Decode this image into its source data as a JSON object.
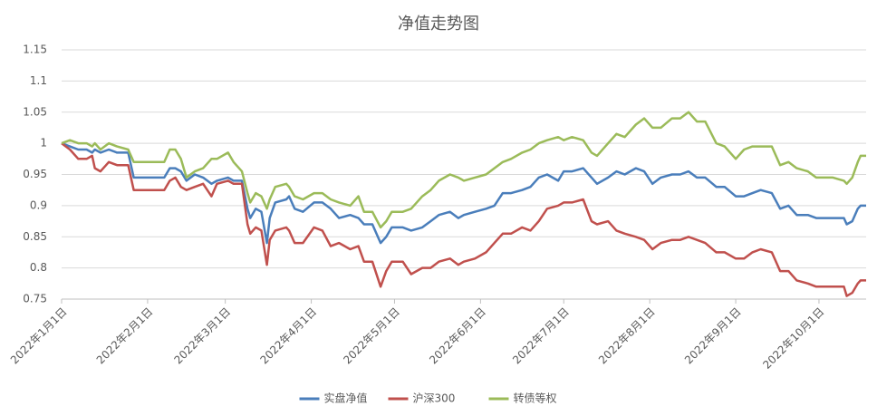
{
  "chart_data": {
    "type": "line",
    "title": "净值走势图",
    "x": [
      "2022-01-01",
      "2022-01-04",
      "2022-01-07",
      "2022-01-10",
      "2022-01-12",
      "2022-01-13",
      "2022-01-15",
      "2022-01-18",
      "2022-01-21",
      "2022-01-25",
      "2022-01-27",
      "2022-02-07",
      "2022-02-09",
      "2022-02-11",
      "2022-02-13",
      "2022-02-15",
      "2022-02-18",
      "2022-02-21",
      "2022-02-24",
      "2022-02-26",
      "2022-03-02",
      "2022-03-04",
      "2022-03-07",
      "2022-03-09",
      "2022-03-10",
      "2022-03-12",
      "2022-03-14",
      "2022-03-16",
      "2022-03-17",
      "2022-03-19",
      "2022-03-23",
      "2022-03-24",
      "2022-03-26",
      "2022-03-29",
      "2022-04-02",
      "2022-04-05",
      "2022-04-08",
      "2022-04-11",
      "2022-04-15",
      "2022-04-18",
      "2022-04-20",
      "2022-04-23",
      "2022-04-26",
      "2022-04-28",
      "2022-04-30",
      "2022-05-04",
      "2022-05-07",
      "2022-05-11",
      "2022-05-14",
      "2022-05-17",
      "2022-05-21",
      "2022-05-24",
      "2022-05-26",
      "2022-05-30",
      "2022-06-03",
      "2022-06-06",
      "2022-06-09",
      "2022-06-12",
      "2022-06-16",
      "2022-06-19",
      "2022-06-22",
      "2022-06-25",
      "2022-06-29",
      "2022-07-01",
      "2022-07-04",
      "2022-07-08",
      "2022-07-11",
      "2022-07-13",
      "2022-07-17",
      "2022-07-20",
      "2022-07-23",
      "2022-07-27",
      "2022-07-30",
      "2022-08-02",
      "2022-08-05",
      "2022-08-09",
      "2022-08-12",
      "2022-08-15",
      "2022-08-18",
      "2022-08-21",
      "2022-08-25",
      "2022-08-28",
      "2022-09-01",
      "2022-09-04",
      "2022-09-07",
      "2022-09-10",
      "2022-09-14",
      "2022-09-17",
      "2022-09-20",
      "2022-09-23",
      "2022-09-27",
      "2022-09-30",
      "2022-10-03",
      "2022-10-06",
      "2022-10-10",
      "2022-10-11",
      "2022-10-13",
      "2022-10-15",
      "2022-10-16",
      "2022-10-18"
    ],
    "series": [
      {
        "name": "实盘净值",
        "color": "#4a7ebb",
        "values": [
          1,
          0.995,
          0.99,
          0.99,
          0.985,
          0.99,
          0.985,
          0.99,
          0.985,
          0.985,
          0.945,
          0.945,
          0.96,
          0.96,
          0.955,
          0.94,
          0.95,
          0.945,
          0.935,
          0.94,
          0.945,
          0.94,
          0.94,
          0.895,
          0.88,
          0.895,
          0.89,
          0.84,
          0.88,
          0.905,
          0.91,
          0.915,
          0.895,
          0.89,
          0.905,
          0.905,
          0.895,
          0.88,
          0.885,
          0.88,
          0.87,
          0.87,
          0.84,
          0.85,
          0.865,
          0.865,
          0.86,
          0.865,
          0.875,
          0.885,
          0.89,
          0.88,
          0.885,
          0.89,
          0.895,
          0.9,
          0.92,
          0.92,
          0.925,
          0.93,
          0.945,
          0.95,
          0.94,
          0.955,
          0.955,
          0.96,
          0.945,
          0.935,
          0.945,
          0.955,
          0.95,
          0.96,
          0.955,
          0.935,
          0.945,
          0.95,
          0.95,
          0.955,
          0.945,
          0.945,
          0.93,
          0.93,
          0.915,
          0.915,
          0.92,
          0.925,
          0.92,
          0.895,
          0.9,
          0.885,
          0.885,
          0.88,
          0.88,
          0.88,
          0.88,
          0.87,
          0.875,
          0.895,
          0.9,
          0.9
        ]
      },
      {
        "name": "沪深300",
        "color": "#c0504d",
        "values": [
          1,
          0.99,
          0.975,
          0.975,
          0.98,
          0.96,
          0.955,
          0.97,
          0.965,
          0.965,
          0.925,
          0.925,
          0.94,
          0.945,
          0.93,
          0.925,
          0.93,
          0.935,
          0.915,
          0.935,
          0.94,
          0.935,
          0.935,
          0.87,
          0.855,
          0.865,
          0.86,
          0.805,
          0.845,
          0.86,
          0.865,
          0.86,
          0.84,
          0.84,
          0.865,
          0.86,
          0.835,
          0.84,
          0.83,
          0.835,
          0.81,
          0.81,
          0.77,
          0.795,
          0.81,
          0.81,
          0.79,
          0.8,
          0.8,
          0.81,
          0.815,
          0.805,
          0.81,
          0.815,
          0.825,
          0.84,
          0.855,
          0.855,
          0.865,
          0.86,
          0.875,
          0.895,
          0.9,
          0.905,
          0.905,
          0.91,
          0.875,
          0.87,
          0.875,
          0.86,
          0.855,
          0.85,
          0.845,
          0.83,
          0.84,
          0.845,
          0.845,
          0.85,
          0.845,
          0.84,
          0.825,
          0.825,
          0.815,
          0.815,
          0.825,
          0.83,
          0.825,
          0.795,
          0.795,
          0.78,
          0.775,
          0.77,
          0.77,
          0.77,
          0.77,
          0.755,
          0.76,
          0.775,
          0.78,
          0.78
        ]
      },
      {
        "name": "转债等权",
        "color": "#9bbb59",
        "values": [
          1,
          1.005,
          1,
          1,
          0.995,
          1,
          0.99,
          1,
          0.995,
          0.99,
          0.97,
          0.97,
          0.99,
          0.99,
          0.975,
          0.945,
          0.955,
          0.96,
          0.975,
          0.975,
          0.985,
          0.97,
          0.955,
          0.92,
          0.905,
          0.92,
          0.915,
          0.895,
          0.91,
          0.93,
          0.935,
          0.93,
          0.915,
          0.91,
          0.92,
          0.92,
          0.91,
          0.905,
          0.9,
          0.915,
          0.89,
          0.89,
          0.865,
          0.875,
          0.89,
          0.89,
          0.895,
          0.915,
          0.925,
          0.94,
          0.95,
          0.945,
          0.94,
          0.945,
          0.95,
          0.96,
          0.97,
          0.975,
          0.985,
          0.99,
          1,
          1.005,
          1.01,
          1.005,
          1.01,
          1.005,
          0.985,
          0.98,
          1,
          1.015,
          1.01,
          1.03,
          1.04,
          1.025,
          1.025,
          1.04,
          1.04,
          1.05,
          1.035,
          1.035,
          1,
          0.995,
          0.975,
          0.99,
          0.995,
          0.995,
          0.995,
          0.965,
          0.97,
          0.96,
          0.955,
          0.945,
          0.945,
          0.945,
          0.94,
          0.935,
          0.945,
          0.97,
          0.98,
          0.98
        ]
      }
    ],
    "xlim": [
      "2022-01-01",
      "2022-10-18"
    ],
    "xticks": [
      {
        "value": "2022-01-01",
        "label": "2022年1月1日"
      },
      {
        "value": "2022-02-01",
        "label": "2022年2月1日"
      },
      {
        "value": "2022-03-01",
        "label": "2022年3月1日"
      },
      {
        "value": "2022-04-01",
        "label": "2022年4月1日"
      },
      {
        "value": "2022-05-01",
        "label": "2022年5月1日"
      },
      {
        "value": "2022-06-01",
        "label": "2022年6月1日"
      },
      {
        "value": "2022-07-01",
        "label": "2022年7月1日"
      },
      {
        "value": "2022-08-01",
        "label": "2022年8月1日"
      },
      {
        "value": "2022-09-01",
        "label": "2022年9月1日"
      },
      {
        "value": "2022-10-01",
        "label": "2022年10月1日"
      }
    ],
    "ylim": [
      0.75,
      1.15
    ],
    "yticks": [
      0.75,
      0.8,
      0.85,
      0.9,
      0.95,
      1,
      1.05,
      1.1,
      1.15
    ],
    "grid": true,
    "legend": "bottom"
  }
}
